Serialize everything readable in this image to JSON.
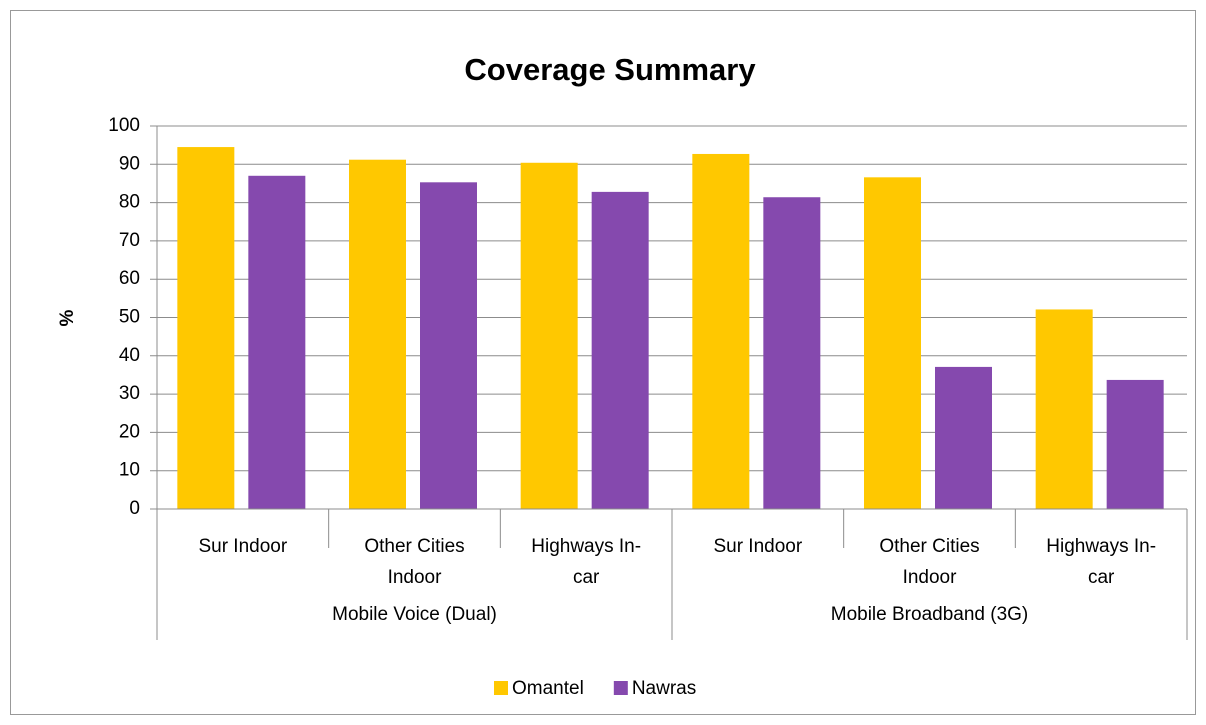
{
  "chart_data": {
    "type": "bar",
    "title": "Coverage Summary",
    "y_label": "%",
    "groups": [
      {
        "name": "Mobile Voice (Dual)",
        "categories": [
          [
            "Sur Indoor"
          ],
          [
            "Other Cities",
            "Indoor"
          ],
          [
            "Highways In-",
            "car"
          ]
        ]
      },
      {
        "name": "Mobile Broadband (3G)",
        "categories": [
          [
            "Sur Indoor"
          ],
          [
            "Other Cities",
            "Indoor"
          ],
          [
            "Highways In-",
            "car"
          ]
        ]
      }
    ],
    "series": [
      {
        "name": "Omantel",
        "color": "#ffc800",
        "values": [
          94.5,
          91.2,
          90.4,
          92.7,
          86.6,
          52.1
        ]
      },
      {
        "name": "Nawras",
        "color": "#8549ae",
        "values": [
          87,
          85.3,
          82.8,
          81.4,
          37.1,
          33.7
        ]
      }
    ],
    "ylim": [
      0,
      100
    ],
    "yticks": [
      0,
      10,
      20,
      30,
      40,
      50,
      60,
      70,
      80,
      90,
      100
    ],
    "grid": true,
    "legend": "bottom"
  }
}
